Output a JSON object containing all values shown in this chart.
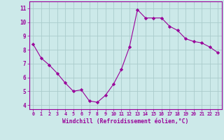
{
  "x": [
    0,
    1,
    2,
    3,
    4,
    5,
    6,
    7,
    8,
    9,
    10,
    11,
    12,
    13,
    14,
    15,
    16,
    17,
    18,
    19,
    20,
    21,
    22,
    23
  ],
  "y": [
    8.4,
    7.4,
    6.9,
    6.3,
    5.6,
    5.0,
    5.1,
    4.3,
    4.2,
    4.7,
    5.5,
    6.6,
    8.2,
    10.9,
    10.3,
    10.3,
    10.3,
    9.7,
    9.4,
    8.8,
    8.6,
    8.5,
    8.2,
    7.8
  ],
  "line_color": "#990099",
  "marker": "D",
  "marker_size": 2.2,
  "bg_color": "#cce9e9",
  "grid_color": "#aacccc",
  "xlabel": "Windchill (Refroidissement éolien,°C)",
  "xlabel_color": "#990099",
  "tick_color": "#990099",
  "ylabel_ticks": [
    4,
    5,
    6,
    7,
    8,
    9,
    10,
    11
  ],
  "xlim": [
    -0.5,
    23.5
  ],
  "ylim": [
    3.7,
    11.5
  ],
  "xtick_labels": [
    "0",
    "1",
    "2",
    "3",
    "4",
    "5",
    "6",
    "7",
    "8",
    "9",
    "10",
    "11",
    "12",
    "13",
    "14",
    "15",
    "16",
    "17",
    "18",
    "19",
    "20",
    "21",
    "22",
    "23"
  ]
}
